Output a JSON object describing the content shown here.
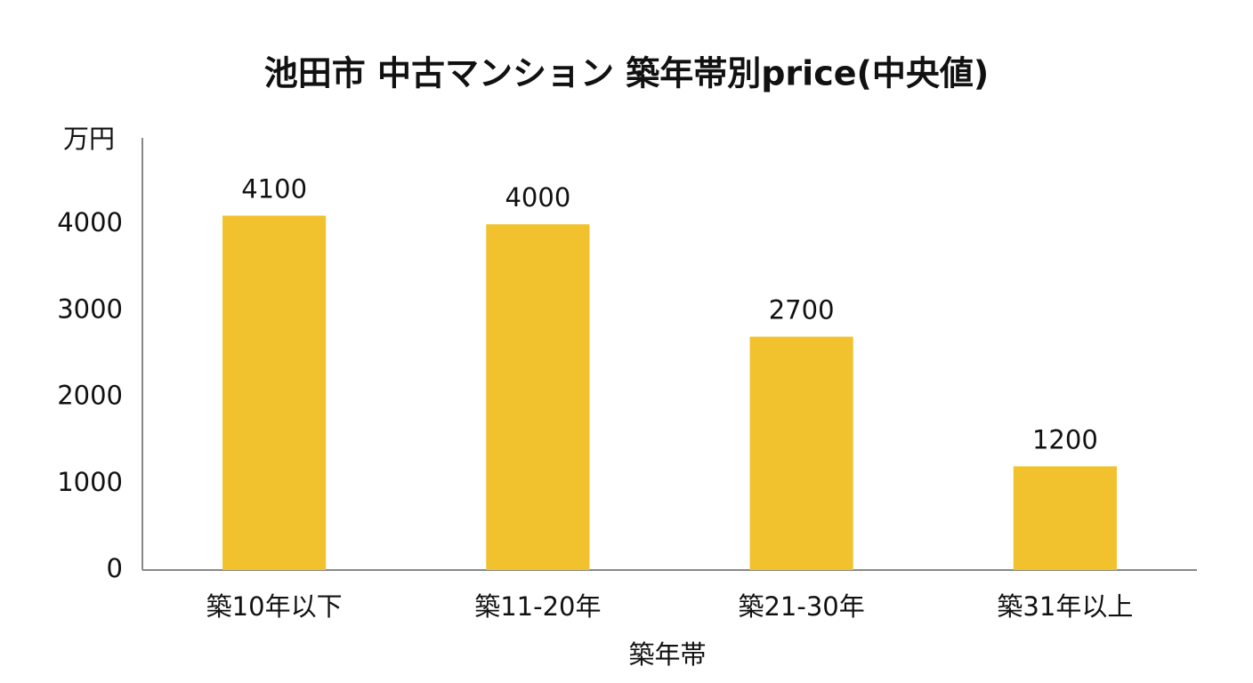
{
  "chart_data": {
    "type": "bar",
    "title": "池田市 中古マンション 築年帯別price(中央値)",
    "y_label": "万円",
    "x_label": "築年帯",
    "categories": [
      "築10年以下",
      "築11-20年",
      "築21-30年",
      "築31年以上"
    ],
    "values": [
      4100,
      4000,
      2700,
      1200
    ],
    "color": "#f2c12e",
    "ylim": [
      0,
      5000
    ],
    "yticks": [
      0,
      1000,
      2000,
      3000,
      4000
    ],
    "grid": false
  }
}
